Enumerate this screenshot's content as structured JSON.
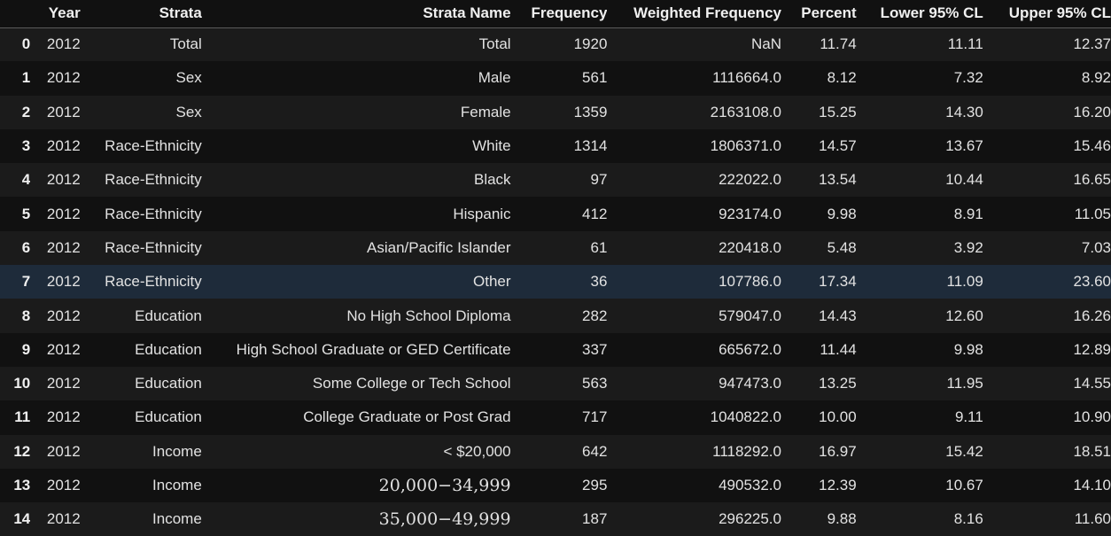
{
  "table": {
    "columns": [
      "",
      "Year",
      "Strata",
      "Strata Name",
      "Frequency",
      "Weighted Frequency",
      "Percent",
      "Lower 95% CL",
      "Upper 95% CL"
    ],
    "rows": [
      {
        "index": "0",
        "year": "2012",
        "strata": "Total",
        "strata_name": "Total",
        "frequency": "1920",
        "weighted_frequency": "NaN",
        "percent": "11.74",
        "lower_cl": "11.11",
        "upper_cl": "12.37"
      },
      {
        "index": "1",
        "year": "2012",
        "strata": "Sex",
        "strata_name": "Male",
        "frequency": "561",
        "weighted_frequency": "1116664.0",
        "percent": "8.12",
        "lower_cl": "7.32",
        "upper_cl": "8.92"
      },
      {
        "index": "2",
        "year": "2012",
        "strata": "Sex",
        "strata_name": "Female",
        "frequency": "1359",
        "weighted_frequency": "2163108.0",
        "percent": "15.25",
        "lower_cl": "14.30",
        "upper_cl": "16.20"
      },
      {
        "index": "3",
        "year": "2012",
        "strata": "Race-Ethnicity",
        "strata_name": "White",
        "frequency": "1314",
        "weighted_frequency": "1806371.0",
        "percent": "14.57",
        "lower_cl": "13.67",
        "upper_cl": "15.46"
      },
      {
        "index": "4",
        "year": "2012",
        "strata": "Race-Ethnicity",
        "strata_name": "Black",
        "frequency": "97",
        "weighted_frequency": "222022.0",
        "percent": "13.54",
        "lower_cl": "10.44",
        "upper_cl": "16.65"
      },
      {
        "index": "5",
        "year": "2012",
        "strata": "Race-Ethnicity",
        "strata_name": "Hispanic",
        "frequency": "412",
        "weighted_frequency": "923174.0",
        "percent": "9.98",
        "lower_cl": "8.91",
        "upper_cl": "11.05"
      },
      {
        "index": "6",
        "year": "2012",
        "strata": "Race-Ethnicity",
        "strata_name": "Asian/Pacific Islander",
        "frequency": "61",
        "weighted_frequency": "220418.0",
        "percent": "5.48",
        "lower_cl": "3.92",
        "upper_cl": "7.03"
      },
      {
        "index": "7",
        "year": "2012",
        "strata": "Race-Ethnicity",
        "strata_name": "Other",
        "frequency": "36",
        "weighted_frequency": "107786.0",
        "percent": "17.34",
        "lower_cl": "11.09",
        "upper_cl": "23.60"
      },
      {
        "index": "8",
        "year": "2012",
        "strata": "Education",
        "strata_name": "No High School Diploma",
        "frequency": "282",
        "weighted_frequency": "579047.0",
        "percent": "14.43",
        "lower_cl": "12.60",
        "upper_cl": "16.26"
      },
      {
        "index": "9",
        "year": "2012",
        "strata": "Education",
        "strata_name": "High School Graduate or GED Certificate",
        "frequency": "337",
        "weighted_frequency": "665672.0",
        "percent": "11.44",
        "lower_cl": "9.98",
        "upper_cl": "12.89"
      },
      {
        "index": "10",
        "year": "2012",
        "strata": "Education",
        "strata_name": "Some College or Tech School",
        "frequency": "563",
        "weighted_frequency": "947473.0",
        "percent": "13.25",
        "lower_cl": "11.95",
        "upper_cl": "14.55"
      },
      {
        "index": "11",
        "year": "2012",
        "strata": "Education",
        "strata_name": "College Graduate or Post Grad",
        "frequency": "717",
        "weighted_frequency": "1040822.0",
        "percent": "10.00",
        "lower_cl": "9.11",
        "upper_cl": "10.90"
      },
      {
        "index": "12",
        "year": "2012",
        "strata": "Income",
        "strata_name": "< $20,000",
        "frequency": "642",
        "weighted_frequency": "1118292.0",
        "percent": "16.97",
        "lower_cl": "15.42",
        "upper_cl": "18.51"
      },
      {
        "index": "13",
        "year": "2012",
        "strata": "Income",
        "strata_name": "20,000−34,999",
        "frequency": "295",
        "weighted_frequency": "490532.0",
        "percent": "12.39",
        "lower_cl": "10.67",
        "upper_cl": "14.10"
      },
      {
        "index": "14",
        "year": "2012",
        "strata": "Income",
        "strata_name": "35,000−49,999",
        "frequency": "187",
        "weighted_frequency": "296225.0",
        "percent": "9.88",
        "lower_cl": "8.16",
        "upper_cl": "11.60"
      }
    ],
    "highlighted_row": 7,
    "serif_name_rows": [
      13,
      14
    ]
  },
  "colors": {
    "background": "#111111",
    "row_stripe": "#1b1b1b",
    "row_highlight": "#1e2b3a",
    "header_rule": "#5a5a5a",
    "text": "#e8e8e8"
  }
}
